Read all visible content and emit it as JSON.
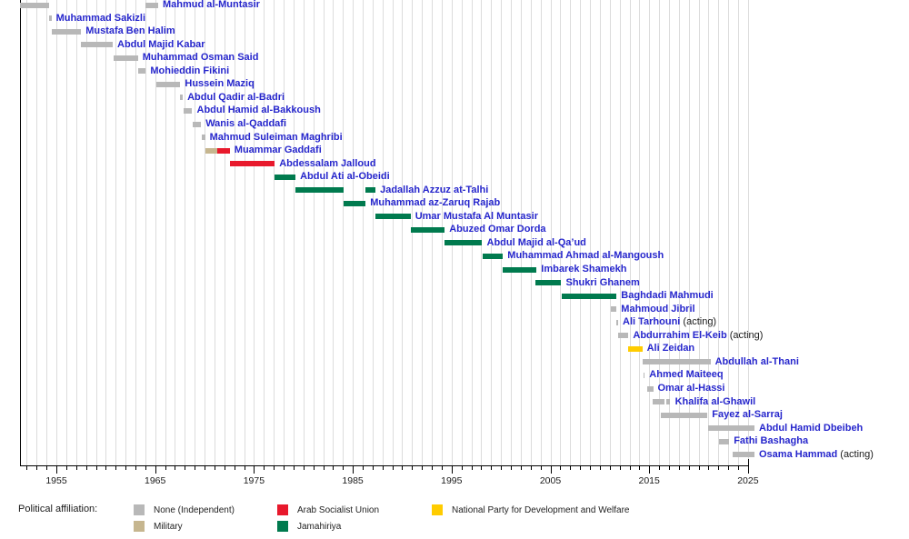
{
  "chart_data": {
    "type": "timeline",
    "x_axis": {
      "range": [
        1951.3,
        2025.65
      ],
      "tick_interval": 1,
      "labeled_ticks": [
        1955,
        1965,
        1975,
        1985,
        1995,
        2005,
        2015,
        2025
      ]
    },
    "affiliations": [
      {
        "key": "none",
        "label": "None (Independent)",
        "color": "#b8b8b8"
      },
      {
        "key": "military",
        "label": "Military",
        "color": "#c6b68f"
      },
      {
        "key": "asu",
        "label": "Arab Socialist Union",
        "color": "#e8192c"
      },
      {
        "key": "jamahiriya",
        "label": "Jamahiriya",
        "color": "#007a4e"
      },
      {
        "key": "npdw",
        "label": "National Party for Development and Welfare",
        "color": "#ffcc00"
      }
    ],
    "rows": [
      {
        "name": "Mahmud al-Muntasir",
        "suffix": "",
        "bars": [
          {
            "start": 1951.3,
            "end": 1954.3,
            "affiliation": "none"
          },
          {
            "start": 1964.0,
            "end": 1965.3,
            "affiliation": "none"
          }
        ]
      },
      {
        "name": "Muhammad Sakizli",
        "suffix": "",
        "bars": [
          {
            "start": 1954.3,
            "end": 1954.5,
            "affiliation": "none"
          }
        ]
      },
      {
        "name": "Mustafa Ben Halim",
        "suffix": "",
        "bars": [
          {
            "start": 1954.5,
            "end": 1957.5,
            "affiliation": "none"
          }
        ]
      },
      {
        "name": "Abdul Majid Kabar",
        "suffix": "",
        "bars": [
          {
            "start": 1957.5,
            "end": 1960.7,
            "affiliation": "none"
          }
        ]
      },
      {
        "name": "Muhammad Osman Said",
        "suffix": "",
        "bars": [
          {
            "start": 1960.8,
            "end": 1963.25,
            "affiliation": "none"
          }
        ]
      },
      {
        "name": "Mohieddin Fikini",
        "suffix": "",
        "bars": [
          {
            "start": 1963.25,
            "end": 1964.05,
            "affiliation": "none"
          }
        ]
      },
      {
        "name": "Hussein Maziq",
        "suffix": "",
        "bars": [
          {
            "start": 1965.15,
            "end": 1967.55,
            "affiliation": "none"
          }
        ]
      },
      {
        "name": "Abdul Qadir al-Badri",
        "suffix": "",
        "bars": [
          {
            "start": 1967.55,
            "end": 1967.8,
            "affiliation": "none"
          }
        ]
      },
      {
        "name": "Abdul Hamid al-Bakkoush",
        "suffix": "",
        "bars": [
          {
            "start": 1967.85,
            "end": 1968.75,
            "affiliation": "none"
          }
        ]
      },
      {
        "name": "Wanis al-Qaddafi",
        "suffix": "",
        "bars": [
          {
            "start": 1968.75,
            "end": 1969.65,
            "affiliation": "none"
          }
        ]
      },
      {
        "name": "Mahmud Suleiman Maghribi",
        "suffix": "",
        "bars": [
          {
            "start": 1969.7,
            "end": 1970.05,
            "affiliation": "none"
          }
        ]
      },
      {
        "name": "Muammar Gaddafi",
        "suffix": "",
        "bars": [
          {
            "start": 1970.05,
            "end": 1971.3,
            "affiliation": "military"
          },
          {
            "start": 1971.3,
            "end": 1972.55,
            "affiliation": "asu"
          }
        ]
      },
      {
        "name": "Abdessalam Jalloud",
        "suffix": "",
        "bars": [
          {
            "start": 1972.55,
            "end": 1977.1,
            "affiliation": "asu"
          }
        ]
      },
      {
        "name": "Abdul Ati al-Obeidi",
        "suffix": "",
        "bars": [
          {
            "start": 1977.1,
            "end": 1979.2,
            "affiliation": "jamahiriya"
          }
        ]
      },
      {
        "name": "Jadallah Azzuz at-Talhi",
        "suffix": "",
        "bars": [
          {
            "start": 1979.2,
            "end": 1984.1,
            "affiliation": "jamahiriya"
          },
          {
            "start": 1986.3,
            "end": 1987.3,
            "affiliation": "jamahiriya"
          }
        ]
      },
      {
        "name": "Muhammad az-Zaruq Rajab",
        "suffix": "",
        "bars": [
          {
            "start": 1984.1,
            "end": 1986.3,
            "affiliation": "jamahiriya"
          }
        ]
      },
      {
        "name": "Umar Mustafa Al Muntasir",
        "suffix": "",
        "bars": [
          {
            "start": 1987.3,
            "end": 1990.85,
            "affiliation": "jamahiriya"
          }
        ]
      },
      {
        "name": "Abuzed Omar Dorda",
        "suffix": "",
        "bars": [
          {
            "start": 1990.85,
            "end": 1994.3,
            "affiliation": "jamahiriya"
          }
        ]
      },
      {
        "name": "Abdul Majid al-Qa’ud",
        "suffix": "",
        "bars": [
          {
            "start": 1994.3,
            "end": 1998.1,
            "affiliation": "jamahiriya"
          }
        ]
      },
      {
        "name": "Muhammad Ahmad al-Mangoush",
        "suffix": "",
        "bars": [
          {
            "start": 1998.1,
            "end": 2000.2,
            "affiliation": "jamahiriya"
          }
        ]
      },
      {
        "name": "Imbarek Shamekh",
        "suffix": "",
        "bars": [
          {
            "start": 2000.2,
            "end": 2003.6,
            "affiliation": "jamahiriya"
          }
        ]
      },
      {
        "name": "Shukri Ghanem",
        "suffix": "",
        "bars": [
          {
            "start": 2003.45,
            "end": 2006.1,
            "affiliation": "jamahiriya"
          }
        ]
      },
      {
        "name": "Baghdadi Mahmudi",
        "suffix": "",
        "bars": [
          {
            "start": 2006.1,
            "end": 2011.7,
            "affiliation": "jamahiriya"
          }
        ]
      },
      {
        "name": "Mahmoud Jibril",
        "suffix": "",
        "bars": [
          {
            "start": 2011.15,
            "end": 2011.7,
            "affiliation": "none"
          }
        ]
      },
      {
        "name": "Ali Tarhouni",
        "suffix": " (acting)",
        "bars": [
          {
            "start": 2011.7,
            "end": 2011.85,
            "affiliation": "none"
          }
        ]
      },
      {
        "name": "Abdurrahim El-Keib",
        "suffix": " (acting)",
        "bars": [
          {
            "start": 2011.85,
            "end": 2012.9,
            "affiliation": "none"
          }
        ]
      },
      {
        "name": "Ali Zeidan",
        "suffix": "",
        "bars": [
          {
            "start": 2012.9,
            "end": 2014.3,
            "affiliation": "npdw"
          }
        ]
      },
      {
        "name": "Abdullah al-Thani",
        "suffix": "",
        "bars": [
          {
            "start": 2014.3,
            "end": 2021.2,
            "affiliation": "none"
          }
        ]
      },
      {
        "name": "Ahmed Maiteeq",
        "suffix": "",
        "bars": [
          {
            "start": 2014.4,
            "end": 2014.55,
            "affiliation": "none"
          }
        ]
      },
      {
        "name": "Omar al-Hassi",
        "suffix": "",
        "bars": [
          {
            "start": 2014.75,
            "end": 2015.4,
            "affiliation": "none"
          }
        ]
      },
      {
        "name": "Khalifa al-Ghawil",
        "suffix": "",
        "bars": [
          {
            "start": 2015.3,
            "end": 2016.55,
            "affiliation": "none"
          },
          {
            "start": 2016.75,
            "end": 2017.15,
            "affiliation": "none"
          }
        ]
      },
      {
        "name": "Fayez al-Sarraj",
        "suffix": "",
        "bars": [
          {
            "start": 2016.2,
            "end": 2020.9,
            "affiliation": "none"
          }
        ]
      },
      {
        "name": "Abdul Hamid Dbeibeh",
        "suffix": "",
        "bars": [
          {
            "start": 2020.95,
            "end": 2025.65,
            "affiliation": "none"
          }
        ]
      },
      {
        "name": "Fathi Bashagha",
        "suffix": "",
        "bars": [
          {
            "start": 2022.1,
            "end": 2023.1,
            "affiliation": "none"
          }
        ]
      },
      {
        "name": "Osama Hammad",
        "suffix": " (acting)",
        "bars": [
          {
            "start": 2023.4,
            "end": 2025.65,
            "affiliation": "none"
          }
        ]
      }
    ]
  },
  "legend": {
    "title": "Political affiliation:",
    "columns": [
      [
        "none",
        "military"
      ],
      [
        "asu",
        "jamahiriya"
      ],
      [
        "npdw"
      ]
    ]
  },
  "colors": {
    "name_text": "#2626cc",
    "suffix_text": "#1a1a1a",
    "axis": "#000000",
    "gridline": "#dcdcdc",
    "tick_label": "#1a1a1a"
  }
}
